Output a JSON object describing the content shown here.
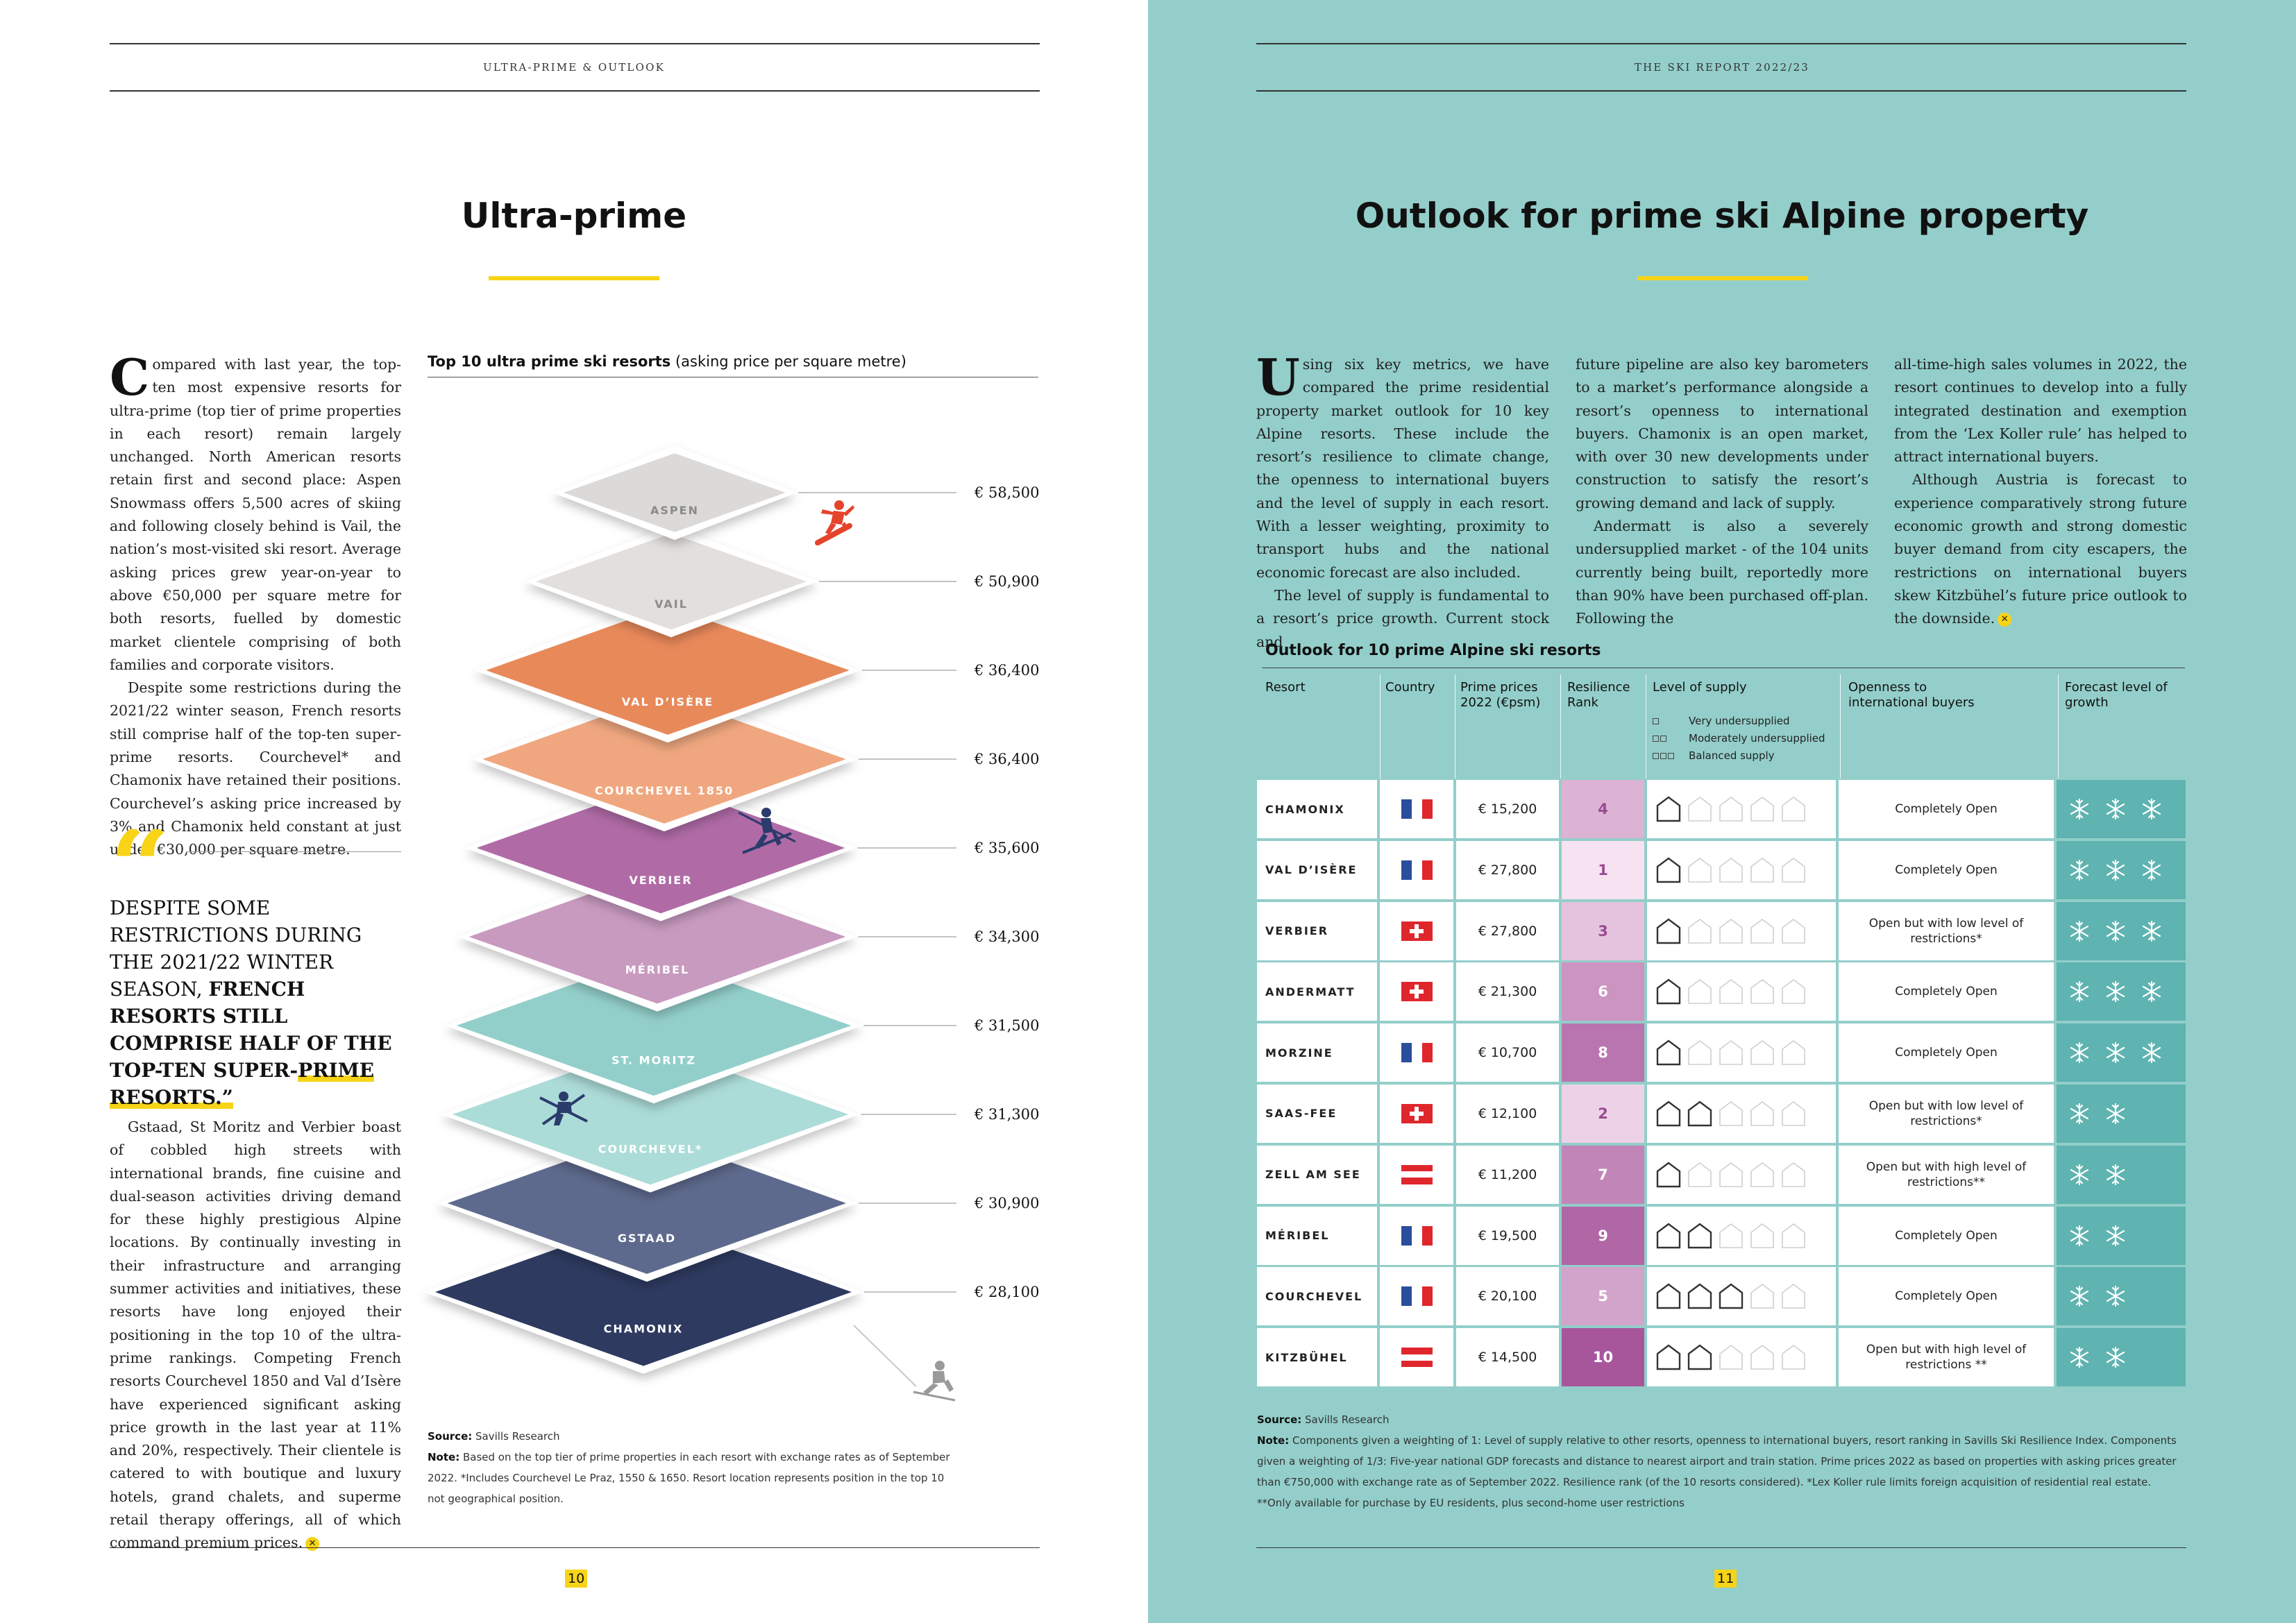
{
  "left_page": {
    "header": "ULTRA-PRIME & OUTLOOK",
    "title": "Ultra-prime",
    "page_number": "10",
    "body_col1": {
      "dropcap": "C",
      "p1": "ompared with last year, the top-ten most expensive resorts for ultra-prime (top tier of prime properties in each resort) remain largely unchanged. North American resorts retain first and second place: Aspen Snowmass offers 5,500 acres of skiing and following closely behind is Vail, the nation’s most-visited ski resort. Average asking prices grew year-on-year to above €50,000 per square metre for both resorts, fuelled by domestic market clientele comprising of both families and corporate visitors.",
      "p2": "Despite some restrictions during the 2021/22 winter season, French resorts still comprise half of the top-ten super-prime resorts. Courchevel* and Chamonix have retained their positions. Courchevel’s asking price increased by 3% and Chamonix held constant at just under €30,000 per square metre.",
      "p3": "Gstaad, St Moritz and Verbier boast of cobbled high streets with international brands, fine cuisine and dual-season activities driving demand for these highly prestigious Alpine locations. By continually investing in their infrastructure and arranging summer activities and initiatives, these resorts have long enjoyed their positioning in the top 10 of the ultra-prime rankings. Competing French resorts Courchevel 1850 and Val d’Isère have experienced significant asking price growth in the last year at 11% and 20%, respectively. Their clientele is catered to with boutique and luxury hotels, grand chalets, and superme retail therapy offerings, all of which command premium prices."
    },
    "pullquote": {
      "mark": "“",
      "plain": "Despite some restrictions during the 2021/22 winter season, ",
      "bold1": "French resorts still comprise half of the top-ten super-",
      "bold2": "prime resorts.”"
    },
    "chart_heading": {
      "bold": "Top 10 ultra prime ski resorts",
      "rest": " (asking price per square metre)"
    },
    "source_label": "Source:",
    "source_value": " Savills Research",
    "note_label": "Note:",
    "note_value": " Based on the top tier of prime properties in each resort with exchange rates as of September 2022. *Includes Courchevel Le Praz, 1550 & 1650. Resort location represents position in the top 10 not geographical position."
  },
  "chart_data": {
    "type": "bar",
    "title": "Top 10 ultra prime ski resorts (asking price per square metre)",
    "categories": [
      "ASPEN",
      "VAIL",
      "VAL D’ISÈRE",
      "COURCHEVEL 1850",
      "VERBIER",
      "MÉRIBEL",
      "ST. MORITZ",
      "COURCHEVEL*",
      "GSTAAD",
      "CHAMONIX"
    ],
    "values": [
      58500,
      50900,
      36400,
      36400,
      35600,
      34300,
      31500,
      31300,
      30900,
      28100
    ],
    "value_labels": [
      "€ 58,500",
      "€ 50,900",
      "€ 36,400",
      "€ 36,400",
      "€ 35,600",
      "€ 34,300",
      "€ 31,500",
      "€ 31,300",
      "€ 30,900",
      "€ 28,100"
    ],
    "colors": [
      "#dcdad8",
      "#e2dfdc",
      "#e8895a",
      "#f0a77f",
      "#b06ba6",
      "#c89ac0",
      "#93cfca",
      "#acdcd8",
      "#5e6a8d",
      "#2e3a60"
    ],
    "label_colors": [
      "#8a8a8a",
      "#8a8a8a",
      "#ffffff",
      "#ffffff",
      "#ffffff",
      "#ffffff",
      "#ffffff",
      "#ffffff",
      "#ffffff",
      "#ffffff"
    ],
    "xlabel": "",
    "ylabel": ""
  },
  "right_page": {
    "header": "THE SKI REPORT 2022/23",
    "title": "Outlook for prime ski Alpine property",
    "page_number": "11",
    "col1": {
      "dropcap": "U",
      "p1": "sing six key metrics, we have compared the prime residential property market outlook for 10 key Alpine resorts. These include the resort’s resilience to climate change, the openness to international buyers and the level of supply in each resort. With a lesser weighting, proximity to transport hubs and the national economic forecast are also included.",
      "p2": "The level of supply is fundamental to a resort’s price growth. Current stock and"
    },
    "col2": {
      "p1": "future pipeline are also key barometers to a market’s performance alongside a resort’s openness to international buyers. Chamonix is an open market, with over 30 new developments under construction to satisfy the resort’s growing demand and lack of supply.",
      "p2": "Andermatt is also a severely undersupplied market - of the 104 units currently being built, reportedly more than 90% have been purchased off-plan. Following the"
    },
    "col3": {
      "p1": "all-time-high sales volumes in 2022, the resort continues to develop into a fully integrated destination and exemption from the ‘Lex Koller rule’ has helped to attract international buyers.",
      "p2": "Although Austria is forecast to experience comparatively strong future economic growth and strong domestic buyer demand from city escapers, the restrictions on international buyers skew Kitzbühel’s future price outlook to the downside."
    },
    "table": {
      "title": "Outlook for 10 prime Alpine ski resorts",
      "headers": {
        "resort": "Resort",
        "country": "Country",
        "price_l1": "Prime prices",
        "price_l2": "2022 (€psm)",
        "rank_l1": "Resilience",
        "rank_l2": "Rank",
        "supply": "Level of supply",
        "open_l1": "Openness to",
        "open_l2": "international buyers",
        "growth_l1": "Forecast level of",
        "growth_l2": "growth"
      },
      "supply_legend": [
        "Very undersupplied",
        "Moderately undersupplied",
        "Balanced supply"
      ],
      "rows": [
        {
          "resort": "CHAMONIX",
          "country": "fr",
          "price": "€ 15,200",
          "rank": "4",
          "supply": 1,
          "openness_l1": "Completely Open",
          "openness_l2": "",
          "growth": 3
        },
        {
          "resort": "VAL D’ISÈRE",
          "country": "fr",
          "price": "€ 27,800",
          "rank": "1",
          "supply": 1,
          "openness_l1": "Completely Open",
          "openness_l2": "",
          "growth": 3
        },
        {
          "resort": "VERBIER",
          "country": "ch",
          "price": "€ 27,800",
          "rank": "3",
          "supply": 1,
          "openness_l1": "Open but with low level of",
          "openness_l2": "restrictions*",
          "growth": 3
        },
        {
          "resort": "ANDERMATT",
          "country": "ch",
          "price": "€ 21,300",
          "rank": "6",
          "supply": 1,
          "openness_l1": "Completely Open",
          "openness_l2": "",
          "growth": 3
        },
        {
          "resort": "MORZINE",
          "country": "fr",
          "price": "€ 10,700",
          "rank": "8",
          "supply": 1,
          "openness_l1": "Completely Open",
          "openness_l2": "",
          "growth": 3
        },
        {
          "resort": "SAAS-FEE",
          "country": "ch",
          "price": "€ 12,100",
          "rank": "2",
          "supply": 2,
          "openness_l1": "Open but with low level of",
          "openness_l2": "restrictions*",
          "growth": 2
        },
        {
          "resort": "ZELL AM SEE",
          "country": "at",
          "price": "€ 11,200",
          "rank": "7",
          "supply": 1,
          "openness_l1": "Open but with high level of",
          "openness_l2": "restrictions**",
          "growth": 2
        },
        {
          "resort": "MÉRIBEL",
          "country": "fr",
          "price": "€ 19,500",
          "rank": "9",
          "supply": 2,
          "openness_l1": "Completely Open",
          "openness_l2": "",
          "growth": 2
        },
        {
          "resort": "COURCHEVEL",
          "country": "fr",
          "price": "€ 20,100",
          "rank": "5",
          "supply": 3,
          "openness_l1": "Completely Open",
          "openness_l2": "",
          "growth": 2
        },
        {
          "resort": "KITZBÜHEL",
          "country": "at",
          "price": "€ 14,500",
          "rank": "10",
          "supply": 2,
          "openness_l1": "Open but with high level of",
          "openness_l2": "restrictions **",
          "growth": 2
        }
      ]
    },
    "source_label": "Source:",
    "source_value": " Savills Research",
    "note_label": "Note:",
    "note_value": " Components given a weighting of 1: Level of supply relative to other resorts, openness to international buyers, resort ranking in Savills Ski Resilience Index. Components given a weighting of 1/3: Five-year national GDP forecasts and distance to nearest airport and train station. Prime prices 2022 as based on properties with asking prices greater than €750,000 with exchange rate as of September 2022. Resilience rank (of the 10 resorts considered). *Lex Koller rule limits foreign acquisition of residential real estate. **Only available for purchase by EU residents, plus second-home user restrictions"
  },
  "colors": {
    "accent": "#f7d417",
    "right_bg": "#93ceca",
    "growth_bg": "#5fb3b0"
  },
  "icons": [
    "snowboarder-icon",
    "skier-icon",
    "freestyle-skier-icon",
    "skier-shadow-icon",
    "house-icon",
    "snowflake-icon",
    "flag-icon"
  ]
}
